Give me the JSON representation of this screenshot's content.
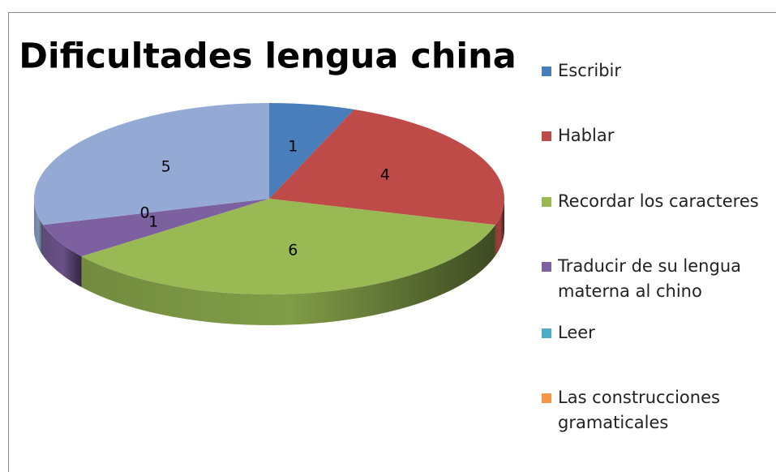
{
  "chart_data": {
    "type": "pie",
    "title": "Dificultades lengua china",
    "categories": [
      "Escribir",
      "Hablar",
      "Recordar los caracteres",
      "Traducir de su lengua materna al chino",
      "Leer",
      "Las construcciones gramaticales"
    ],
    "values": [
      1,
      4,
      6,
      1,
      0,
      5
    ],
    "colors": [
      "#4a7ebb",
      "#be4b48",
      "#98b954",
      "#7d60a0",
      "#4bacc6",
      "#94aad5"
    ],
    "legend_colors": [
      "#4a7ebb",
      "#be4b48",
      "#98b954",
      "#7d60a0",
      "#4bacc6",
      "#f79646"
    ],
    "legend": "right"
  }
}
